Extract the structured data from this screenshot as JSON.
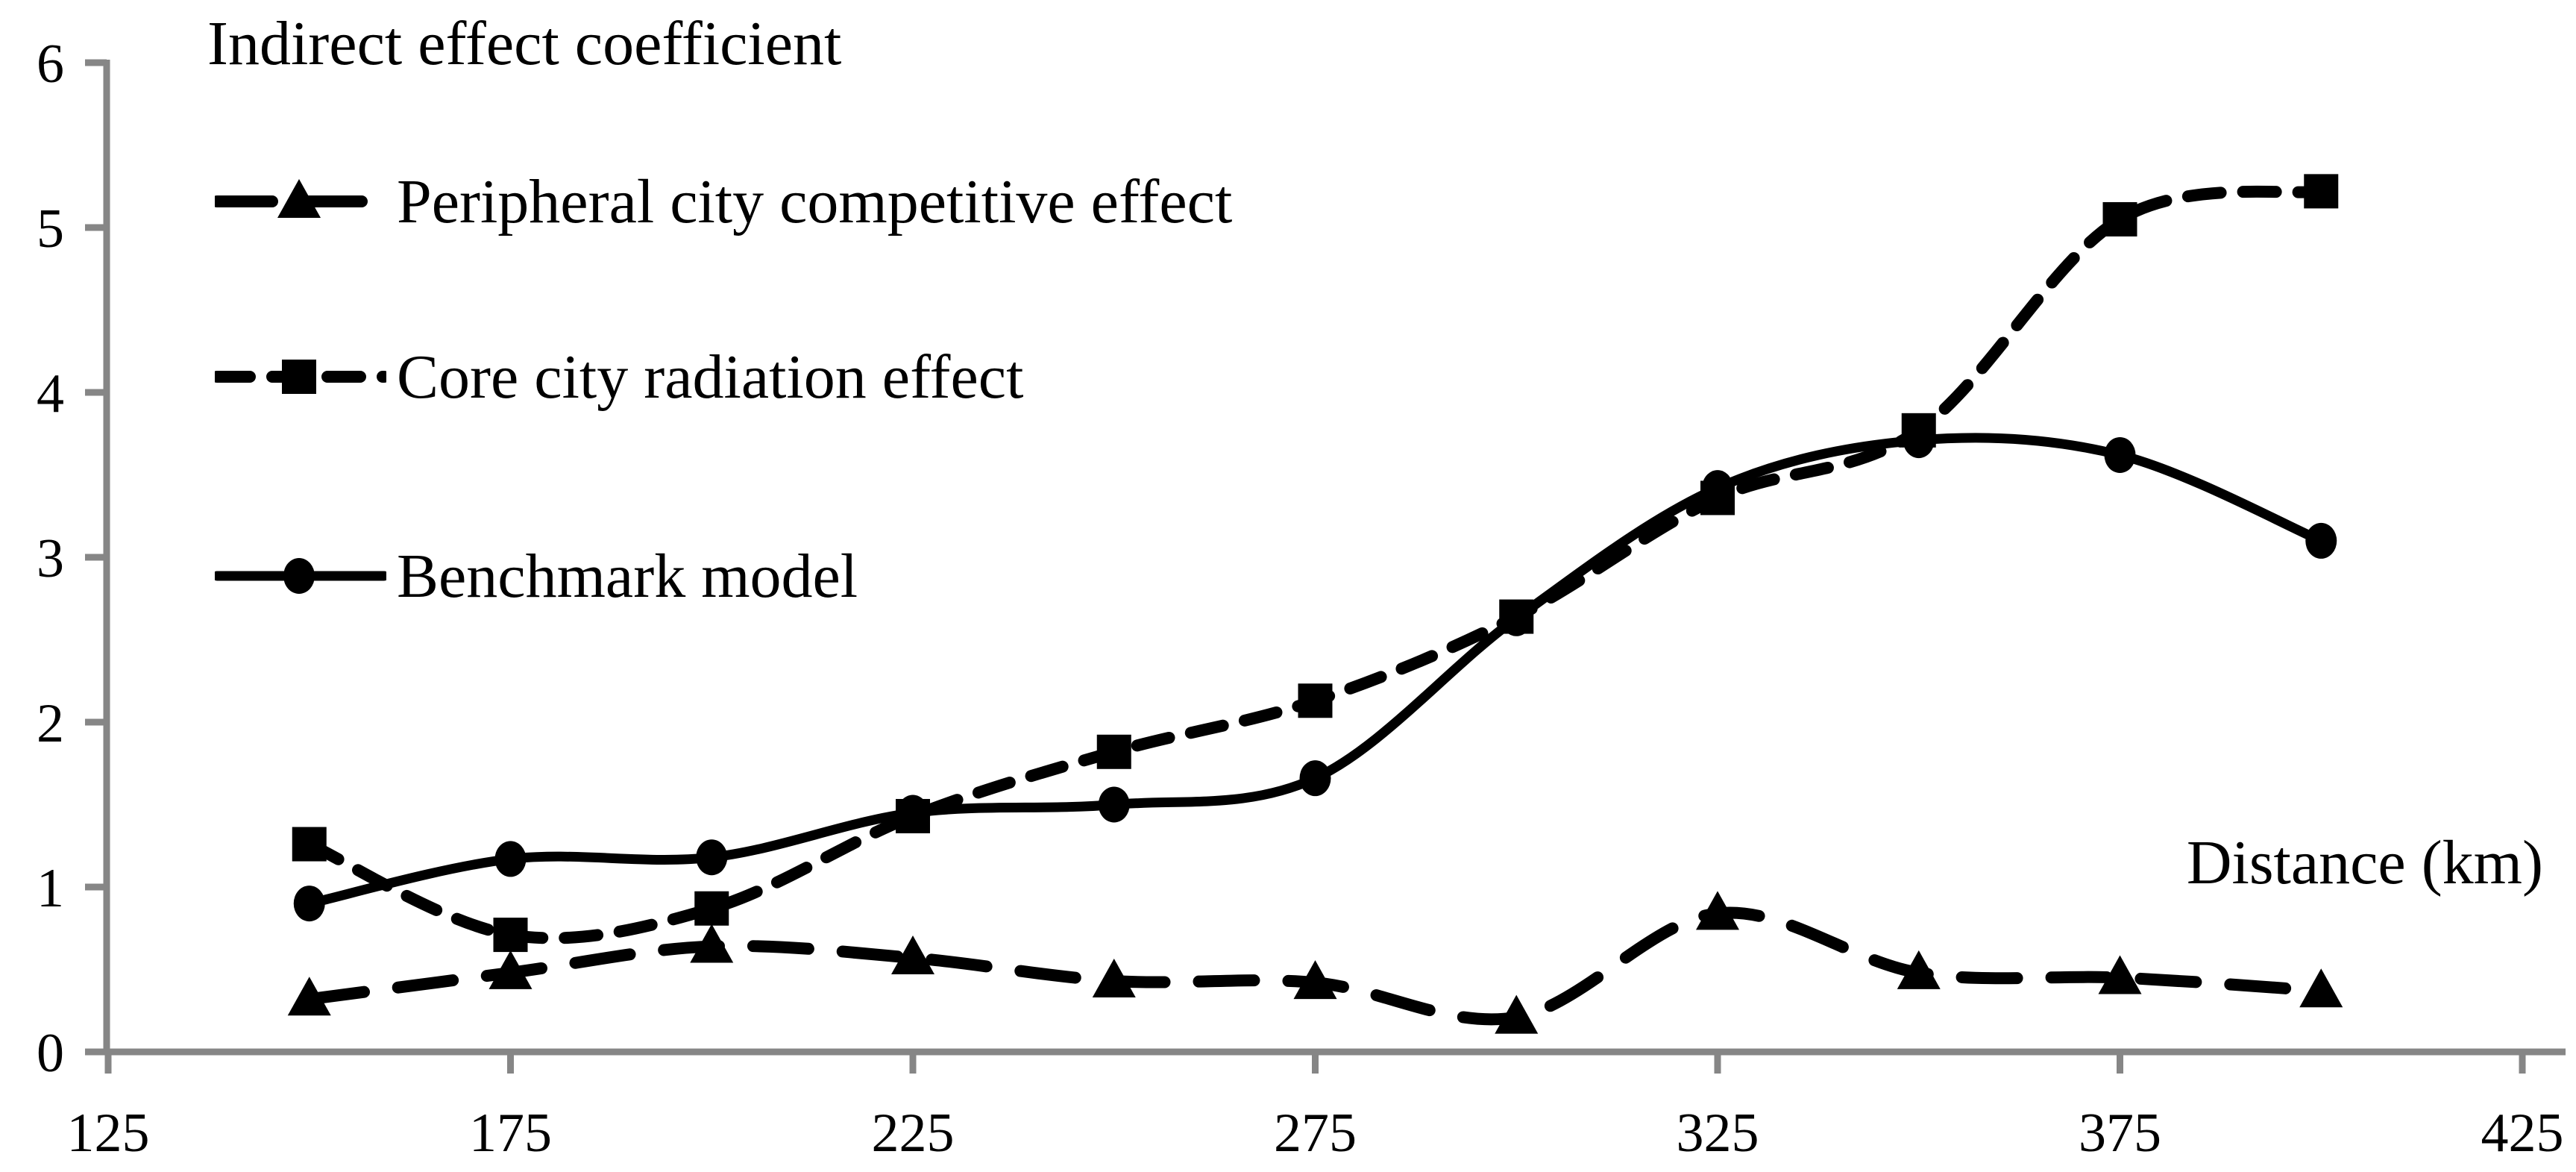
{
  "page": {
    "background": "#ffffff"
  },
  "chart_data": {
    "type": "line",
    "title": "Indirect effect coefficient",
    "xlabel": "Distance (km)",
    "ylabel": "",
    "x": [
      150,
      175,
      200,
      225,
      250,
      275,
      300,
      325,
      350,
      375,
      400
    ],
    "xlim": [
      125,
      425
    ],
    "ylim": [
      0,
      6
    ],
    "xticks": [
      125,
      175,
      225,
      275,
      325,
      375,
      425
    ],
    "yticks": [
      0,
      1,
      2,
      3,
      4,
      5,
      6
    ],
    "grid": false,
    "legend_position": "top-left",
    "axis_color": "#868686",
    "series_color": "#000000",
    "series": [
      {
        "name": "Peripheral city competitive effect",
        "marker": "triangle",
        "line_style": "long-dash",
        "values": [
          0.32,
          0.48,
          0.64,
          0.57,
          0.43,
          0.42,
          0.21,
          0.84,
          0.48,
          0.45,
          0.37
        ]
      },
      {
        "name": "Core city radiation effect",
        "marker": "square",
        "line_style": "short-dash",
        "values": [
          1.26,
          0.71,
          0.87,
          1.43,
          1.82,
          2.13,
          2.64,
          3.36,
          3.77,
          5.05,
          5.22
        ]
      },
      {
        "name": "Benchmark model",
        "marker": "circle",
        "line_style": "solid",
        "values": [
          0.9,
          1.17,
          1.18,
          1.45,
          1.5,
          1.66,
          2.63,
          3.42,
          3.71,
          3.62,
          3.1
        ]
      }
    ]
  }
}
